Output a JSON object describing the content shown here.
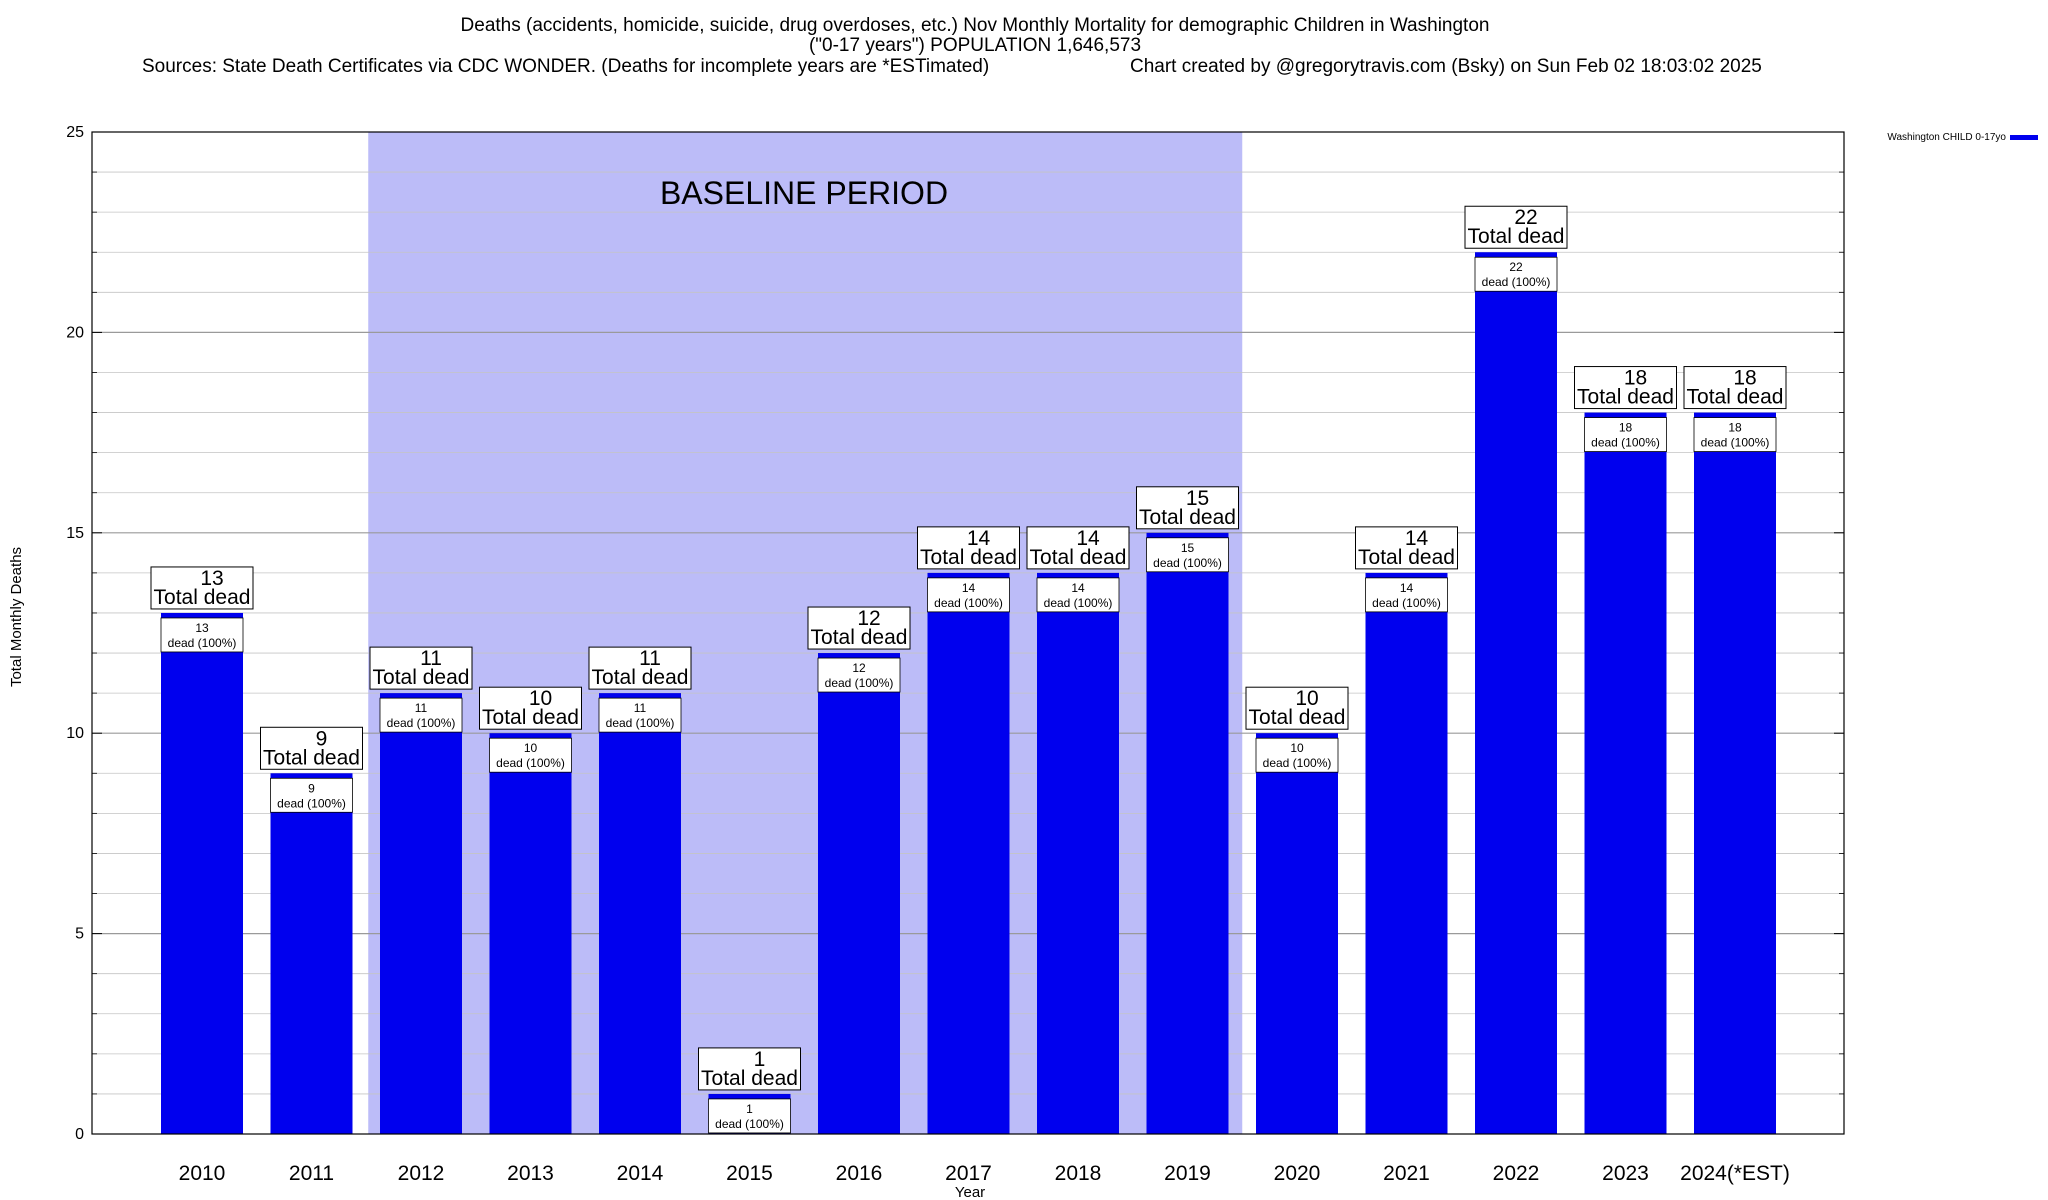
{
  "header": {
    "title_line1": "Deaths (accidents, homicide, suicide, drug overdoses, etc.) Nov Monthly Mortality for demographic Children in Washington",
    "title_line2": "(\"0-17 years\") POPULATION 1,646,573",
    "sources": "Sources: State Death Certificates via CDC WONDER. (Deaths for incomplete years are *ESTimated)",
    "credit": "Chart created by @gregorytravis.com (Bsky) on Sun Feb 02 18:03:02 2025"
  },
  "chart_data": {
    "type": "bar",
    "xlabel": "Year",
    "ylabel": "Total Monthly Deaths",
    "ylim": [
      0,
      25
    ],
    "yticks": [
      0,
      5,
      10,
      15,
      20,
      25
    ],
    "grid": true,
    "legend_position": "top-right",
    "categories": [
      "2010",
      "2011",
      "2012",
      "2013",
      "2014",
      "2015",
      "2016",
      "2017",
      "2018",
      "2019",
      "2020",
      "2021",
      "2022",
      "2023",
      "2024(*EST)"
    ],
    "series": [
      {
        "name": "Washington CHILD 0-17yo",
        "color": "#0000ee",
        "values": [
          13,
          9,
          11,
          10,
          11,
          1,
          12,
          14,
          14,
          15,
          10,
          14,
          22,
          18,
          18
        ]
      }
    ],
    "total_label": "Total dead",
    "inner_label": "dead (100%)",
    "baseline": {
      "label": "BASELINE PERIOD",
      "start": "2012",
      "end": "2019",
      "color": "#bcbcf8"
    }
  }
}
